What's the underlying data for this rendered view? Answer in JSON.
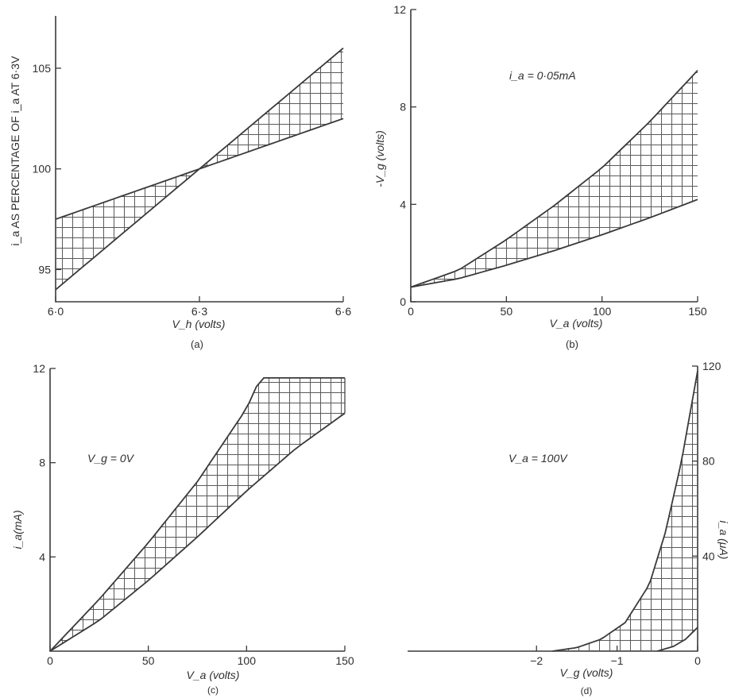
{
  "colors": {
    "ink": "#3a3a3a",
    "hatch": "#5a5a5a",
    "paper": "#ffffff"
  },
  "chart_data": [
    {
      "id": "a",
      "type": "area",
      "caption": "(a)",
      "xlabel": "V_h (volts)",
      "ylabel": "i_a AS PERCENTAGE OF i_a AT 6·3V",
      "xlim": [
        6.0,
        6.6
      ],
      "ylim": [
        93.4,
        107.6
      ],
      "xticks": [
        6.0,
        6.3,
        6.6
      ],
      "xtick_labels": [
        "6·0",
        "6·3",
        "6·6"
      ],
      "yticks": [
        95,
        100,
        105
      ],
      "ytick_labels": [
        "95",
        "100",
        "105"
      ],
      "annotation": "",
      "grid": false,
      "series": [
        {
          "x": [
            6.0,
            6.3,
            6.6
          ],
          "y": [
            97.5,
            100.0,
            102.5
          ]
        },
        {
          "x": [
            6.0,
            6.3,
            6.6
          ],
          "y": [
            94.0,
            100.0,
            106.0
          ]
        }
      ]
    },
    {
      "id": "b",
      "type": "area",
      "caption": "(b)",
      "xlabel": "V_a (volts)",
      "ylabel": "-V_g (volts)",
      "xlim": [
        0,
        150
      ],
      "ylim": [
        0,
        12
      ],
      "xticks": [
        0,
        50,
        100,
        150
      ],
      "xtick_labels": [
        "0",
        "50",
        "100",
        "150"
      ],
      "yticks": [
        0,
        4,
        8,
        12
      ],
      "ytick_labels": [
        "0",
        "4",
        "8",
        "12"
      ],
      "annotation": "i_a = 0·05mA",
      "grid": false,
      "series": [
        {
          "x": [
            0,
            25,
            50,
            75,
            100,
            125,
            150
          ],
          "y": [
            0.6,
            0.95,
            1.5,
            2.1,
            2.75,
            3.45,
            4.2
          ]
        },
        {
          "x": [
            0,
            25,
            50,
            75,
            100,
            125,
            150
          ],
          "y": [
            0.6,
            1.3,
            2.55,
            3.95,
            5.5,
            7.4,
            9.5
          ]
        }
      ]
    },
    {
      "id": "c",
      "type": "area",
      "caption": "(c)",
      "xlabel": "V_a (volts)",
      "ylabel": "i_a(mA)",
      "xlim": [
        0,
        150
      ],
      "ylim": [
        0,
        12
      ],
      "xticks": [
        0,
        50,
        100,
        150
      ],
      "xtick_labels": [
        "0",
        "50",
        "100",
        "150"
      ],
      "yticks": [
        4,
        8,
        12
      ],
      "ytick_labels": [
        "4",
        "8",
        "12"
      ],
      "annotation": "V_g = 0V",
      "grid": false,
      "series": [
        {
          "x": [
            0,
            25,
            50,
            75,
            100,
            125,
            150
          ],
          "y": [
            0,
            1.3,
            3.0,
            4.85,
            6.8,
            8.6,
            10.1
          ]
        },
        {
          "x": [
            0,
            25,
            50,
            75,
            100,
            107,
            125,
            150
          ],
          "y": [
            0,
            2.2,
            4.6,
            7.2,
            10.3,
            11.6,
            11.6,
            11.6
          ]
        }
      ]
    },
    {
      "id": "d",
      "type": "area",
      "caption": "(d)",
      "xlabel": "V_g (volts)",
      "ylabel": "i_a (μA)",
      "xlim": [
        -3.6,
        0
      ],
      "ylim": [
        0,
        120
      ],
      "xticks": [
        -2,
        -1,
        0
      ],
      "xtick_labels": [
        "−2",
        "−1",
        "0"
      ],
      "yticks": [
        40,
        80,
        120
      ],
      "ytick_labels": [
        "40",
        "80",
        "120"
      ],
      "annotation": "V_a = 100V",
      "grid": false,
      "series": [
        {
          "x": [
            -0.5,
            -0.3,
            -0.15,
            0
          ],
          "y": [
            0,
            2,
            5,
            10
          ]
        },
        {
          "x": [
            -1.8,
            -1.5,
            -1.2,
            -0.9,
            -0.6,
            -0.4,
            -0.2,
            0
          ],
          "y": [
            0,
            1.5,
            5,
            12,
            28,
            50,
            80,
            118
          ]
        }
      ]
    }
  ]
}
